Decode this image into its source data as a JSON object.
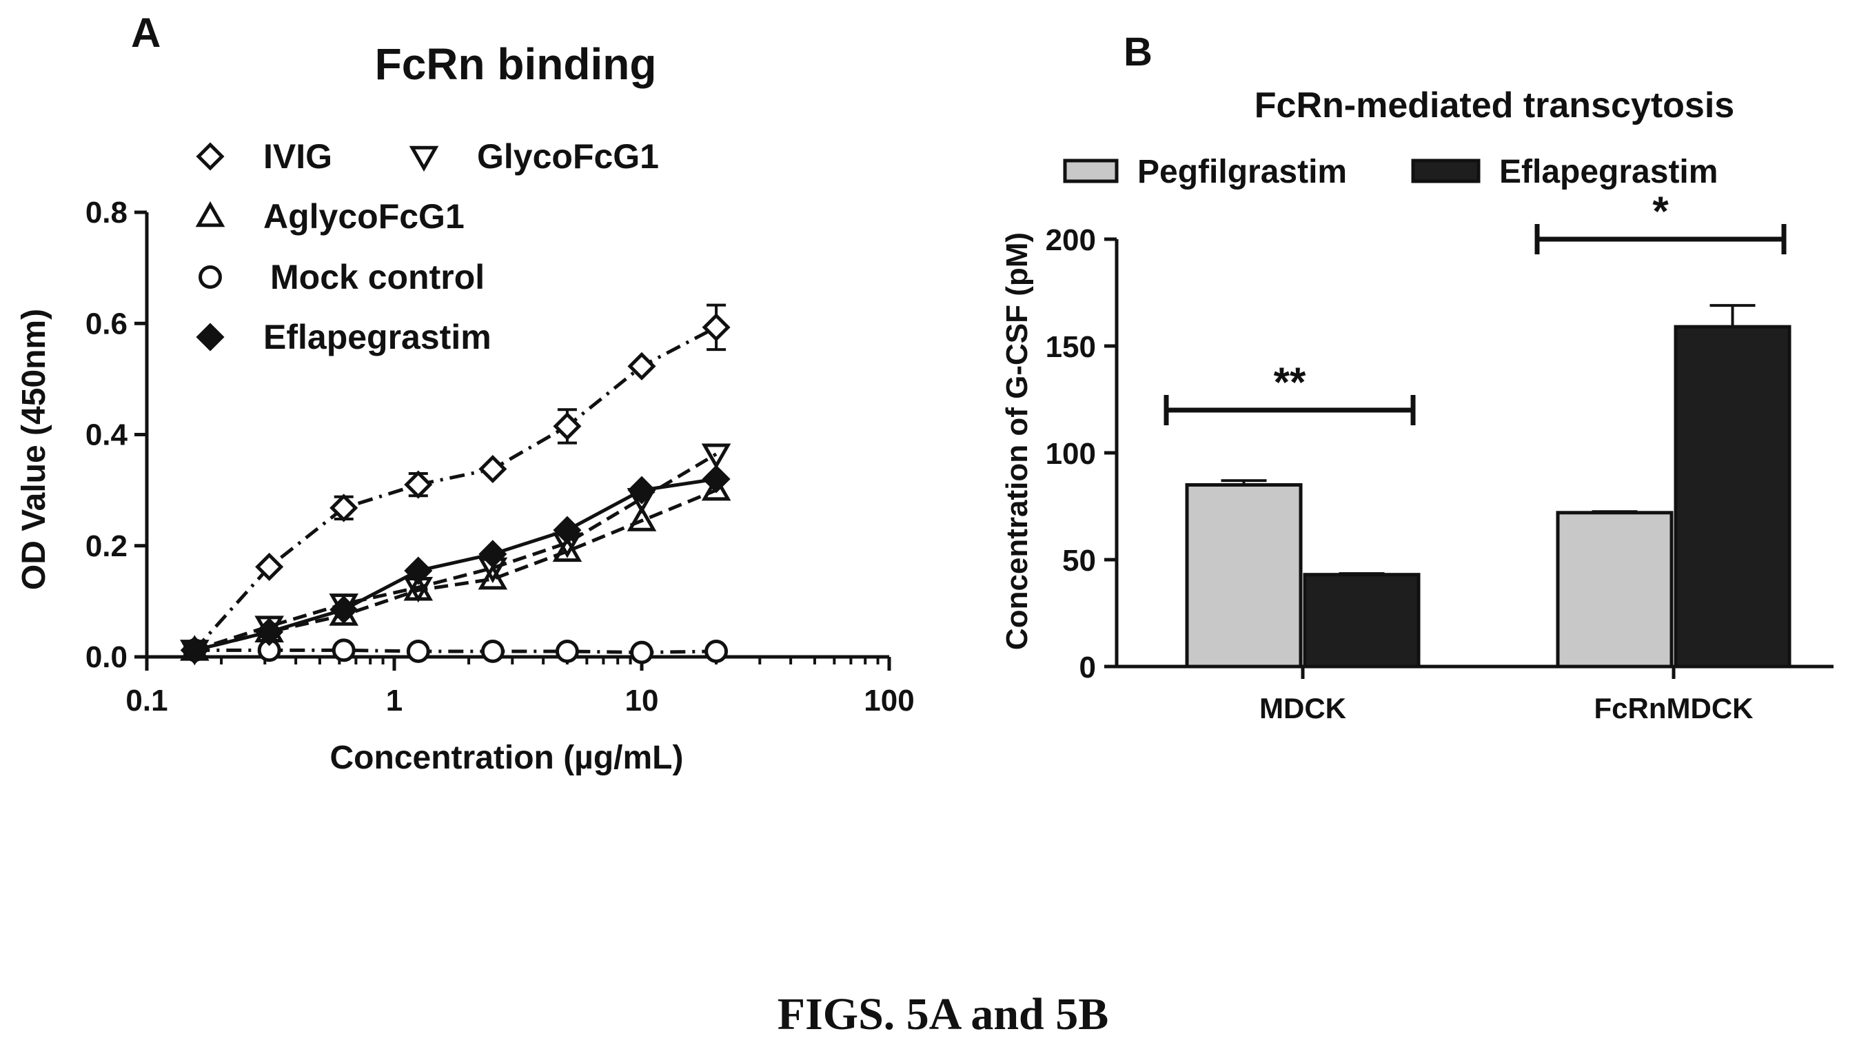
{
  "caption": "FIGS. 5A and 5B",
  "chart_data": [
    {
      "panel": "A",
      "type": "line",
      "title": "FcRn binding",
      "xlabel": "Concentration (µg/mL)",
      "ylabel": "OD Value (450nm)",
      "xscale": "log",
      "xlim": [
        0.1,
        100
      ],
      "ylim": [
        0,
        0.8
      ],
      "xticks": [
        "0.1",
        "1",
        "10",
        "100"
      ],
      "yticks": [
        "0.0",
        "0.2",
        "0.4",
        "0.6",
        "0.8"
      ],
      "legend_position": "top",
      "grid": false,
      "series": [
        {
          "name": "IVIG",
          "marker": "diamond-open",
          "linestyle": "dash-dot",
          "x": [
            0.156,
            0.3125,
            0.625,
            1.25,
            2.5,
            5,
            10,
            20
          ],
          "y": [
            0.012,
            0.162,
            0.268,
            0.31,
            0.338,
            0.415,
            0.523,
            0.593
          ],
          "err": [
            0,
            0,
            0.02,
            0.02,
            0,
            0.03,
            0,
            0.04
          ]
        },
        {
          "name": "GlycoFcG1",
          "marker": "triangle-down-open",
          "linestyle": "dashed",
          "x": [
            0.156,
            0.3125,
            0.625,
            1.25,
            2.5,
            5,
            10,
            20
          ],
          "y": [
            0.012,
            0.055,
            0.095,
            0.125,
            0.16,
            0.205,
            0.285,
            0.365
          ],
          "err": [
            0,
            0,
            0,
            0,
            0,
            0,
            0,
            0
          ]
        },
        {
          "name": "AglycoFcG1",
          "marker": "triangle-up-open",
          "linestyle": "dashed",
          "x": [
            0.156,
            0.3125,
            0.625,
            1.25,
            2.5,
            5,
            10,
            20
          ],
          "y": [
            0.012,
            0.045,
            0.075,
            0.12,
            0.14,
            0.19,
            0.245,
            0.3
          ],
          "err": [
            0,
            0,
            0,
            0,
            0,
            0,
            0,
            0
          ]
        },
        {
          "name": "Mock control",
          "marker": "circle-open",
          "linestyle": "dash-dot",
          "x": [
            0.156,
            0.3125,
            0.625,
            1.25,
            2.5,
            5,
            10,
            20
          ],
          "y": [
            0.012,
            0.012,
            0.012,
            0.01,
            0.01,
            0.01,
            0.008,
            0.01
          ],
          "err": [
            0,
            0,
            0,
            0,
            0,
            0,
            0,
            0
          ]
        },
        {
          "name": "Eflapegrastim",
          "marker": "diamond-filled",
          "linestyle": "solid",
          "x": [
            0.156,
            0.3125,
            0.625,
            1.25,
            2.5,
            5,
            10,
            20
          ],
          "y": [
            0.012,
            0.045,
            0.085,
            0.155,
            0.185,
            0.228,
            0.3,
            0.32
          ],
          "err": [
            0,
            0,
            0,
            0,
            0,
            0,
            0,
            0
          ]
        }
      ]
    },
    {
      "panel": "B",
      "type": "bar",
      "title": "FcRn-mediated transcytosis",
      "xlabel": "",
      "ylabel": "Concentration of G-CSF (pM)",
      "ylim": [
        0,
        200
      ],
      "yticks": [
        "0",
        "50",
        "100",
        "150",
        "200"
      ],
      "categories": [
        "MDCK",
        "FcRnMDCK"
      ],
      "legend_position": "top",
      "grid": false,
      "series": [
        {
          "name": "Pegfilgrastim",
          "color": "#c8c8c8",
          "values": [
            85,
            72
          ],
          "err": [
            2,
            0.5
          ]
        },
        {
          "name": "Eflapegrastim",
          "color": "#1e1e1e",
          "values": [
            43,
            159
          ],
          "err": [
            0.5,
            10
          ]
        }
      ],
      "significance": [
        {
          "category": "MDCK",
          "label": "**",
          "y": 120
        },
        {
          "category": "FcRnMDCK",
          "label": "*",
          "y": 200
        }
      ]
    }
  ]
}
